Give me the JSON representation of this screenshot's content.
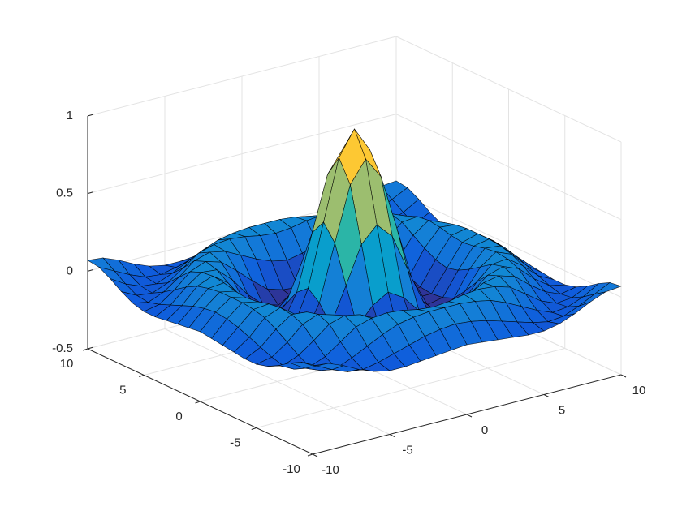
{
  "chart_data": {
    "type": "surface",
    "colormap": "parula",
    "grid": true,
    "x": [
      -10,
      -9,
      -8,
      -7,
      -6,
      -5,
      -4,
      -3,
      -2,
      -1,
      0,
      1,
      2,
      3,
      4,
      5,
      6,
      7,
      8,
      9,
      10
    ],
    "y": [
      -10,
      -9,
      -8,
      -7,
      -6,
      -5,
      -4,
      -3,
      -2,
      -1,
      0,
      1,
      2,
      3,
      4,
      5,
      6,
      7,
      8,
      9,
      10
    ],
    "z": [
      [
        0.07,
        0.06,
        0.02,
        -0.03,
        -0.07,
        -0.09,
        -0.09,
        -0.08,
        -0.07,
        -0.06,
        -0.05,
        -0.06,
        -0.07,
        -0.08,
        -0.09,
        -0.09,
        -0.07,
        -0.03,
        0.02,
        0.06,
        0.07
      ],
      [
        0.06,
        0.01,
        -0.04,
        -0.08,
        -0.09,
        -0.07,
        -0.04,
        -0.01,
        0.02,
        0.04,
        0.05,
        0.04,
        0.02,
        -0.01,
        -0.04,
        -0.07,
        -0.09,
        -0.08,
        -0.04,
        0.01,
        0.06
      ],
      [
        0.02,
        -0.04,
        -0.08,
        -0.09,
        -0.05,
        0,
        0.05,
        0.09,
        0.11,
        0.12,
        0.12,
        0.12,
        0.11,
        0.09,
        0.05,
        0,
        -0.05,
        -0.09,
        -0.08,
        -0.04,
        0.02
      ],
      [
        -0.03,
        -0.08,
        -0.09,
        -0.05,
        0.02,
        0.09,
        0.12,
        0.13,
        0.12,
        0.1,
        0.09,
        0.1,
        0.12,
        0.13,
        0.12,
        0.09,
        0.02,
        -0.05,
        -0.09,
        -0.08,
        -0.03
      ],
      [
        -0.07,
        -0.09,
        -0.05,
        0.02,
        0.1,
        0.13,
        0.11,
        0.06,
        0.01,
        -0.03,
        -0.05,
        -0.03,
        0.01,
        0.06,
        0.11,
        0.13,
        0.1,
        0.02,
        -0.05,
        -0.09,
        -0.07
      ],
      [
        -0.09,
        -0.07,
        0,
        0.09,
        0.13,
        0.1,
        0.02,
        -0.07,
        -0.15,
        -0.18,
        -0.19,
        -0.18,
        -0.15,
        -0.07,
        0.02,
        0.1,
        0.13,
        0.09,
        0,
        -0.07,
        -0.09
      ],
      [
        -0.09,
        -0.04,
        0.05,
        0.12,
        0.11,
        0.02,
        -0.1,
        -0.19,
        -0.22,
        -0.2,
        -0.19,
        -0.2,
        -0.22,
        -0.19,
        -0.1,
        0.02,
        0.11,
        0.12,
        0.05,
        -0.04,
        -0.09
      ],
      [
        -0.08,
        -0.01,
        0.09,
        0.13,
        0.06,
        -0.07,
        -0.19,
        -0.21,
        -0.12,
        -0.01,
        0.05,
        -0.01,
        -0.12,
        -0.21,
        -0.19,
        -0.07,
        0.06,
        0.13,
        0.09,
        -0.01,
        -0.08
      ],
      [
        -0.07,
        0.02,
        0.11,
        0.12,
        0.01,
        -0.15,
        -0.22,
        -0.12,
        0.11,
        0.35,
        0.45,
        0.35,
        0.11,
        -0.12,
        -0.22,
        -0.15,
        0.01,
        0.12,
        0.11,
        0.02,
        -0.07
      ],
      [
        -0.06,
        0.04,
        0.12,
        0.1,
        -0.03,
        -0.18,
        -0.2,
        -0.01,
        0.35,
        0.7,
        0.84,
        0.7,
        0.35,
        -0.01,
        -0.2,
        -0.18,
        -0.03,
        0.1,
        0.12,
        0.04,
        -0.06
      ],
      [
        -0.05,
        0.05,
        0.12,
        0.09,
        -0.05,
        -0.19,
        -0.19,
        0.05,
        0.45,
        0.84,
        1,
        0.84,
        0.45,
        0.05,
        -0.19,
        -0.19,
        -0.05,
        0.09,
        0.12,
        0.05,
        -0.05
      ],
      [
        -0.06,
        0.04,
        0.12,
        0.1,
        -0.03,
        -0.18,
        -0.2,
        -0.01,
        0.35,
        0.7,
        0.84,
        0.7,
        0.35,
        -0.01,
        -0.2,
        -0.18,
        -0.03,
        0.1,
        0.12,
        0.04,
        -0.06
      ],
      [
        -0.07,
        0.02,
        0.11,
        0.12,
        0.01,
        -0.15,
        -0.22,
        -0.12,
        0.11,
        0.35,
        0.45,
        0.35,
        0.11,
        -0.12,
        -0.22,
        -0.15,
        0.01,
        0.12,
        0.11,
        0.02,
        -0.07
      ],
      [
        -0.08,
        -0.01,
        0.09,
        0.13,
        0.06,
        -0.07,
        -0.19,
        -0.21,
        -0.12,
        -0.01,
        0.05,
        -0.01,
        -0.12,
        -0.21,
        -0.19,
        -0.07,
        0.06,
        0.13,
        0.09,
        -0.01,
        -0.08
      ],
      [
        -0.09,
        -0.04,
        0.05,
        0.12,
        0.11,
        0.02,
        -0.1,
        -0.19,
        -0.22,
        -0.2,
        -0.19,
        -0.2,
        -0.22,
        -0.19,
        -0.1,
        0.02,
        0.11,
        0.12,
        0.05,
        -0.04,
        -0.09
      ],
      [
        -0.09,
        -0.07,
        0,
        0.09,
        0.13,
        0.1,
        0.02,
        -0.07,
        -0.15,
        -0.18,
        -0.19,
        -0.18,
        -0.15,
        -0.07,
        0.02,
        0.1,
        0.13,
        0.09,
        0,
        -0.07,
        -0.09
      ],
      [
        -0.07,
        -0.09,
        -0.05,
        0.02,
        0.1,
        0.13,
        0.11,
        0.06,
        0.01,
        -0.03,
        -0.05,
        -0.03,
        0.01,
        0.06,
        0.11,
        0.13,
        0.1,
        0.02,
        -0.05,
        -0.09,
        -0.07
      ],
      [
        -0.03,
        -0.08,
        -0.09,
        -0.05,
        0.02,
        0.09,
        0.12,
        0.13,
        0.12,
        0.1,
        0.09,
        0.1,
        0.12,
        0.13,
        0.12,
        0.09,
        0.02,
        -0.05,
        -0.09,
        -0.08,
        -0.03
      ],
      [
        0.02,
        -0.04,
        -0.08,
        -0.09,
        -0.05,
        0,
        0.05,
        0.09,
        0.11,
        0.12,
        0.12,
        0.12,
        0.11,
        0.09,
        0.05,
        0,
        -0.05,
        -0.09,
        -0.08,
        -0.04,
        0.02
      ],
      [
        0.06,
        0.01,
        -0.04,
        -0.08,
        -0.09,
        -0.07,
        -0.04,
        -0.01,
        0.02,
        0.04,
        0.05,
        0.04,
        0.02,
        -0.01,
        -0.04,
        -0.07,
        -0.09,
        -0.08,
        -0.04,
        0.01,
        0.06
      ],
      [
        0.07,
        0.06,
        0.02,
        -0.03,
        -0.07,
        -0.09,
        -0.09,
        -0.08,
        -0.07,
        -0.06,
        -0.05,
        -0.06,
        -0.07,
        -0.08,
        -0.09,
        -0.09,
        -0.07,
        -0.03,
        0.02,
        0.06,
        0.07
      ]
    ],
    "xlim": [
      -10,
      10
    ],
    "ylim": [
      -10,
      10
    ],
    "zlim": [
      -0.5,
      1
    ],
    "xticks": [
      -10,
      -5,
      0,
      5,
      10
    ],
    "yticks": [
      -10,
      -5,
      0,
      5,
      10
    ],
    "zticks": [
      -0.5,
      0,
      0.5,
      1
    ]
  }
}
